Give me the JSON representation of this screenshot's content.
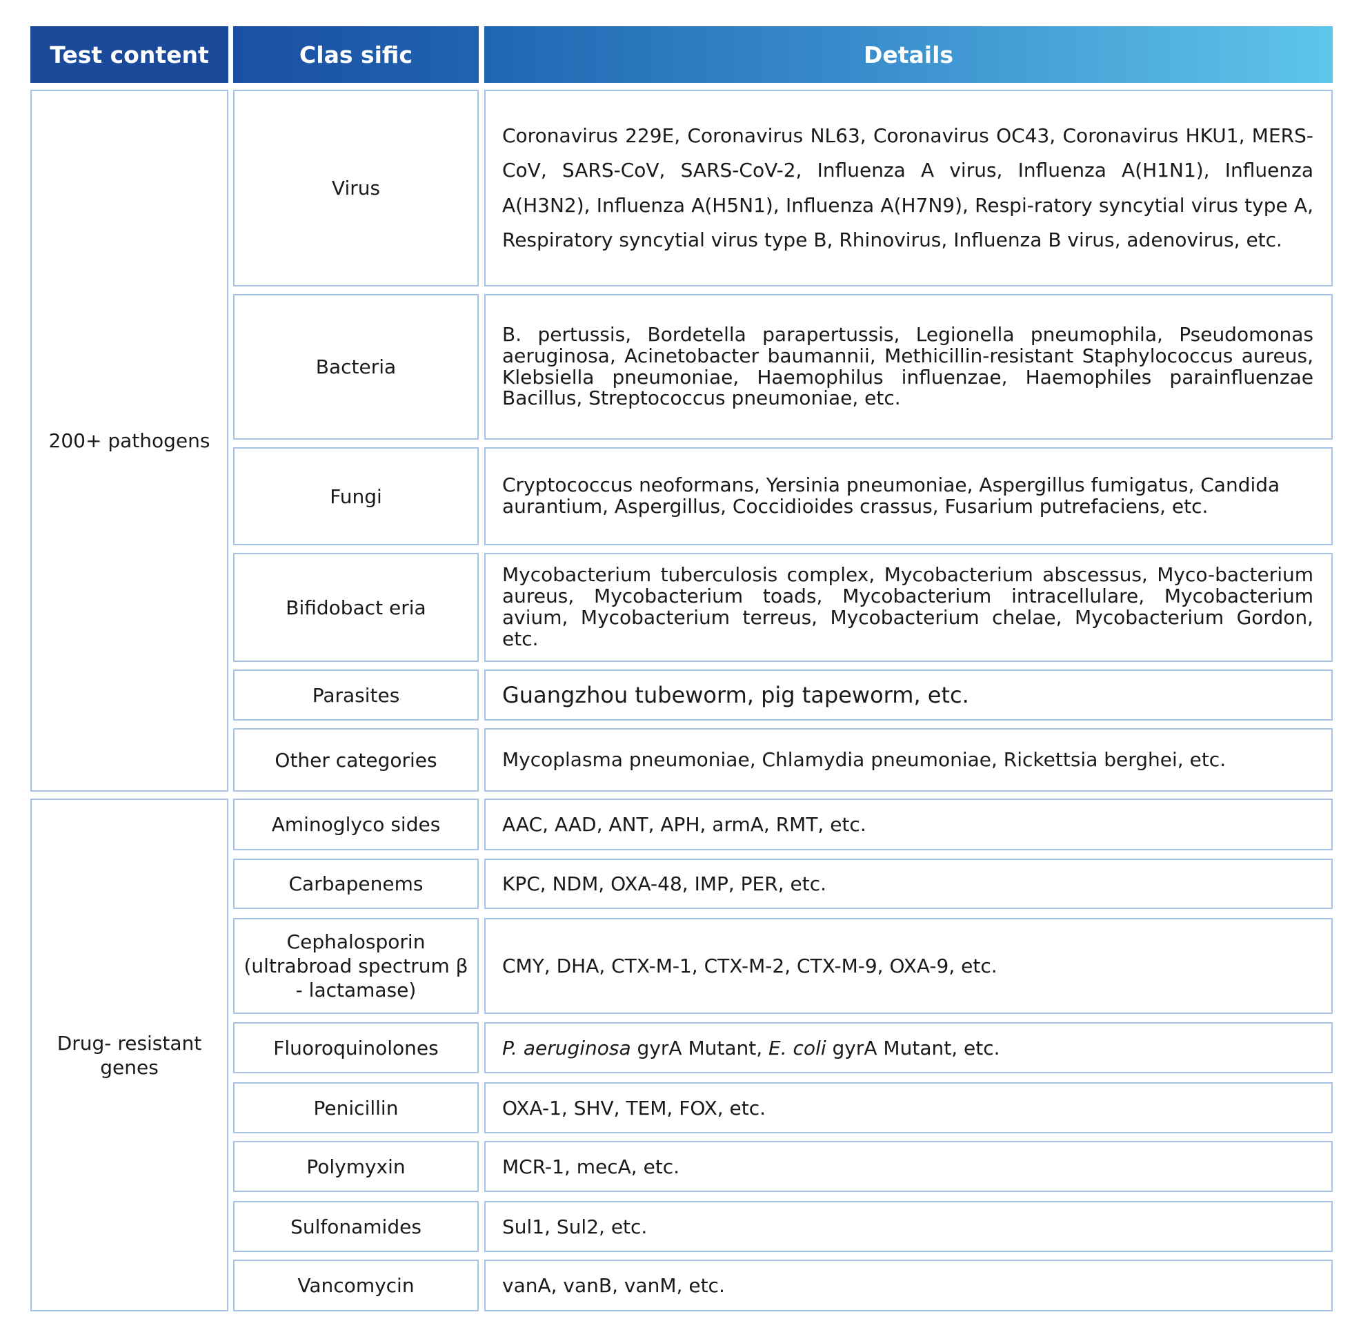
{
  "header": {
    "col1": "Test content",
    "col2": "Clas sific",
    "col3": "Details",
    "gradient_start": "#1b4a9b",
    "gradient_end": "#5ec5ea"
  },
  "border_color": "#a9c3e6",
  "groups": [
    {
      "label": "200+ pathogens",
      "rows": [
        {
          "class": "Virus",
          "details": "Coronavirus 229E, Coronavirus NL63, Coronavirus OC43, Coronavirus HKU1, MERS-CoV, SARS-CoV, SARS-CoV-2, Influenza A virus, Influenza A(H1N1), Influenza A(H3N2), Influenza A(H5N1), Influenza A(H7N9), Respi-ratory syncytial virus type A, Respiratory syncytial virus type B, Rhinovirus, Influenza B virus, adenovirus, etc."
        },
        {
          "class": "Bacteria",
          "details": "B. pertussis, Bordetella parapertussis, Legionella pneumophila, Pseudomonas aeruginosa, Acinetobacter baumannii, Methicillin-resistant Staphylococcus aureus, Klebsiella pneumoniae, Haemophilus influenzae, Haemophiles parainfluenzae Bacillus, Streptococcus pneumoniae, etc."
        },
        {
          "class": "Fungi",
          "details": "Cryptococcus neoformans, Yersinia pneumoniae, Aspergillus fumigatus, Candida aurantium, Aspergillus, Coccidioides crassus, Fusarium putrefaciens, etc."
        },
        {
          "class": "Bifidobact eria",
          "details": "Mycobacterium tuberculosis complex, Mycobacterium abscessus, Myco-bacterium aureus, Mycobacterium toads, Mycobacterium intracellulare, Mycobacterium avium, Mycobacterium terreus, Mycobacterium chelae, Mycobacterium Gordon, etc."
        },
        {
          "class": "Parasites",
          "details": "Guangzhou tubeworm, pig tapeworm, etc."
        },
        {
          "class": "Other categories",
          "details": "Mycoplasma pneumoniae, Chlamydia pneumoniae, Rickettsia berghei, etc."
        }
      ]
    },
    {
      "label": "Drug- resistant genes",
      "rows": [
        {
          "class": "Aminoglyco sides",
          "details": "AAC, AAD, ANT, APH, armA, RMT, etc."
        },
        {
          "class": "Carbapenems",
          "details": "KPC, NDM, OXA-48, IMP, PER, etc."
        },
        {
          "class": "Cephalosporin (ultrabroad spectrum β - lactamase)",
          "details": "CMY, DHA, CTX-M-1, CTX-M-2, CTX-M-9, OXA-9, etc."
        },
        {
          "class": "Fluoroquinolones",
          "details_italic_1": "P. aeruginosa",
          "details_mid": " gyrA Mutant, ",
          "details_italic_2": "E. coli",
          "details_end": " gyrA Mutant, etc."
        },
        {
          "class": "Penicillin",
          "details": "OXA-1, SHV, TEM, FOX, etc."
        },
        {
          "class": "Polymyxin",
          "details": "MCR-1, mecA, etc."
        },
        {
          "class": "Sulfonamides",
          "details": "Sul1, Sul2, etc."
        },
        {
          "class": "Vancomycin",
          "details": "vanA, vanB, vanM, etc."
        }
      ]
    }
  ]
}
